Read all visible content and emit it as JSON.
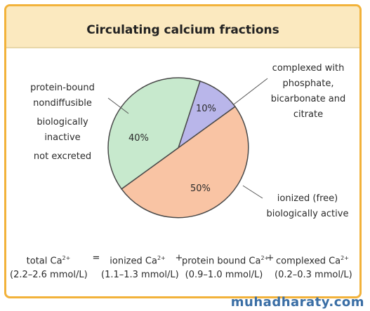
{
  "chart_data": {
    "type": "pie",
    "title": "Circulating calcium fractions",
    "slices": [
      {
        "name": "complexed",
        "value": 10,
        "label": "10%",
        "color": "#b9b6ea",
        "annotation": [
          "complexed with",
          "phosphate,",
          "bicarbonate and",
          "citrate"
        ]
      },
      {
        "name": "ionized",
        "value": 50,
        "label": "50%",
        "color": "#f9c4a4",
        "annotation": [
          "ionized (free)",
          "biologically active"
        ]
      },
      {
        "name": "protein-bound",
        "value": 40,
        "label": "40%",
        "color": "#c7e9cd",
        "annotation": [
          "protein-bound",
          "nondiffusible",
          "biologically",
          "inactive",
          "not excreted"
        ]
      }
    ]
  },
  "labels": {
    "protein_bound_1": "protein-bound",
    "protein_bound_2": "nondiffusible",
    "protein_bound_3": "biologically",
    "protein_bound_4": "inactive",
    "protein_bound_5": "not excreted",
    "complexed_1": "complexed with",
    "complexed_2": "phosphate,",
    "complexed_3": "bicarbonate and",
    "complexed_4": "citrate",
    "ionized_1": "ionized (free)",
    "ionized_2": "biologically active"
  },
  "equation": {
    "total": "total Ca",
    "total_range": "(2.2–2.6 mmol/L)",
    "equals": "=",
    "ionized": "ionized Ca",
    "ionized_range": "(1.1–1.3 mmol/L)",
    "plus1": "+",
    "protein": "protein bound Ca",
    "protein_range": "(0.9–1.0 mmol/L)",
    "plus2": "+",
    "complexed": "complexed Ca",
    "complexed_range": "(0.2–0.3 mmol/L)",
    "charge": "2+"
  },
  "watermark": "muhadharaty.com",
  "colors": {
    "border": "#f2b23a",
    "title_bg": "#fbe9bf",
    "slice_stroke": "#4a4a4a"
  }
}
